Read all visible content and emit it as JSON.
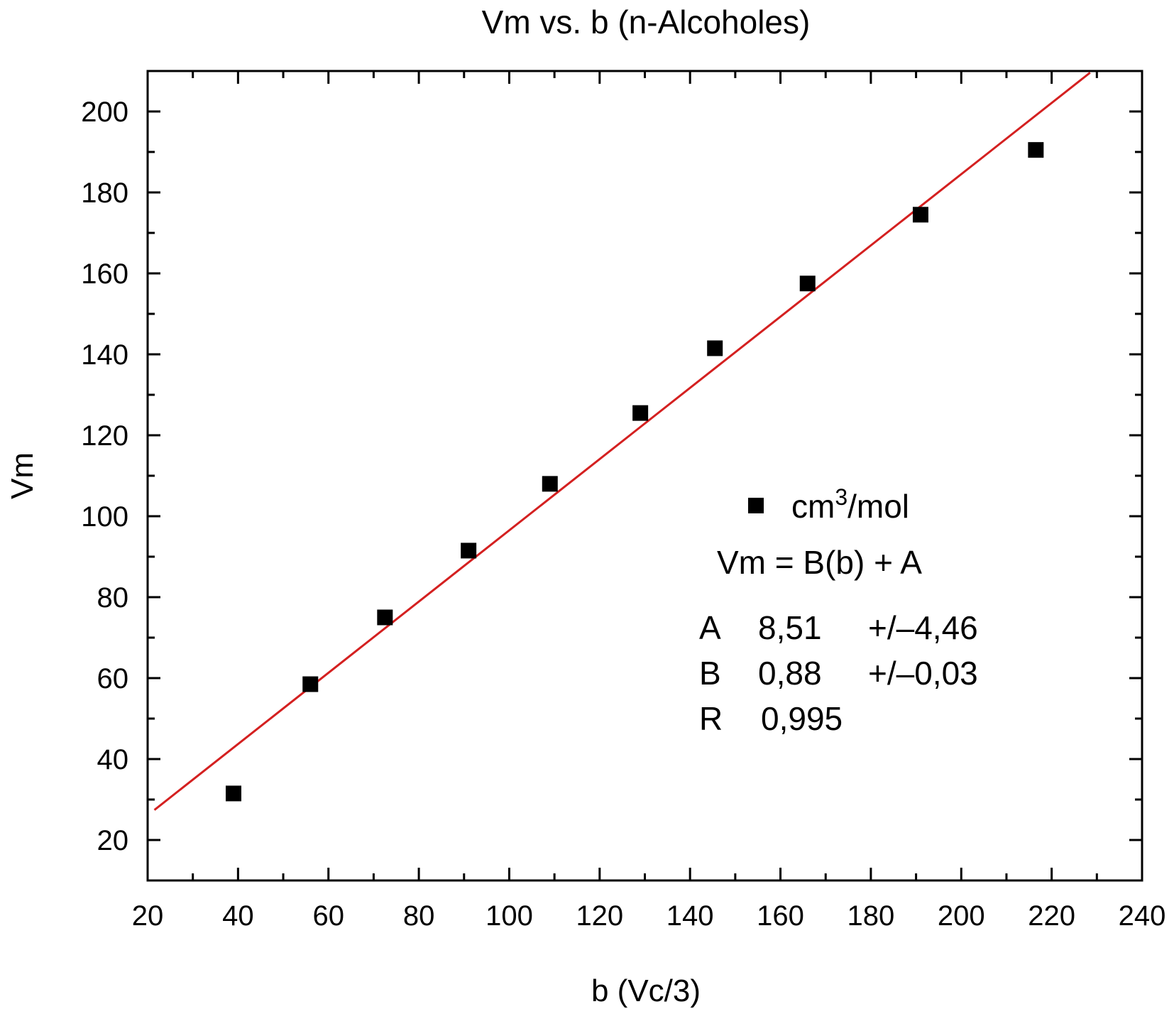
{
  "chart_data": {
    "type": "scatter",
    "title": "Vm vs. b (n-Alcoholes)",
    "xlabel": "b (Vc/3)",
    "ylabel": "Vm",
    "xlim": [
      20,
      240
    ],
    "ylim": [
      10,
      210
    ],
    "xticks": [
      20,
      40,
      60,
      80,
      100,
      120,
      140,
      160,
      180,
      200,
      220,
      240
    ],
    "yticks": [
      20,
      40,
      60,
      80,
      100,
      120,
      140,
      160,
      180,
      200
    ],
    "grid": false,
    "legend_position": "right",
    "series": [
      {
        "name": "cm³/mol",
        "name_base": "cm",
        "name_sup": "3",
        "name_rest": "/mol",
        "marker": "square",
        "color": "#000000",
        "points": [
          {
            "x": 39,
            "y": 31.5
          },
          {
            "x": 56,
            "y": 58.5
          },
          {
            "x": 72.5,
            "y": 75
          },
          {
            "x": 91,
            "y": 91.5
          },
          {
            "x": 109,
            "y": 108
          },
          {
            "x": 129,
            "y": 125.5
          },
          {
            "x": 145.5,
            "y": 141.5
          },
          {
            "x": 166,
            "y": 157.5
          },
          {
            "x": 191,
            "y": 174.5
          },
          {
            "x": 216.5,
            "y": 190.5
          }
        ]
      }
    ],
    "fit": {
      "color": "#d42020",
      "equation": "Vm = B(b) + A",
      "intercept": 8.51,
      "slope": 0.88,
      "x_range": [
        21.5,
        228.5
      ],
      "params": [
        {
          "name": "A",
          "value": "8,51",
          "error": "+/–4,46"
        },
        {
          "name": "B",
          "value": "0,88",
          "error": "+/–0,03"
        },
        {
          "name": "R",
          "value": "0,995",
          "error": ""
        }
      ]
    }
  }
}
